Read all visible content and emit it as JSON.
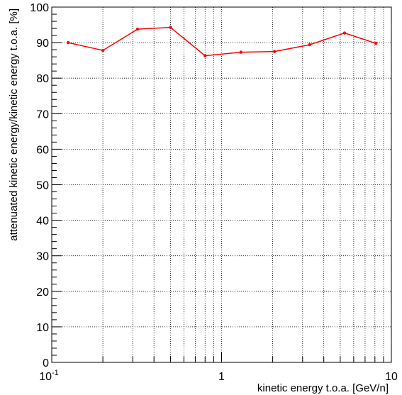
{
  "chart_data": {
    "type": "line",
    "title": "",
    "xlabel": "kinetic energy t.o.a. [GeV/n]",
    "ylabel": "attenuated kinetic energy/kinetic energy t.o.a. [%]",
    "x_scale": "log",
    "xlim": [
      0.1,
      10
    ],
    "ylim": [
      0,
      100
    ],
    "grid": true,
    "line_color": "#ff0000",
    "y_ticks": [
      "0",
      "10",
      "20",
      "30",
      "40",
      "50",
      "60",
      "70",
      "80",
      "90",
      "100"
    ],
    "x_ticks": [
      {
        "base": "10",
        "exp": "-1"
      },
      {
        "base": "1",
        "exp": ""
      },
      {
        "base": "10",
        "exp": ""
      }
    ],
    "series": [
      {
        "x": [
          0.125,
          0.2,
          0.32,
          0.5,
          0.8,
          1.3,
          2.05,
          3.3,
          5.3,
          8.1
        ],
        "y": [
          90.0,
          87.8,
          93.8,
          94.3,
          86.3,
          87.3,
          87.5,
          89.4,
          92.7,
          89.8
        ]
      }
    ]
  }
}
